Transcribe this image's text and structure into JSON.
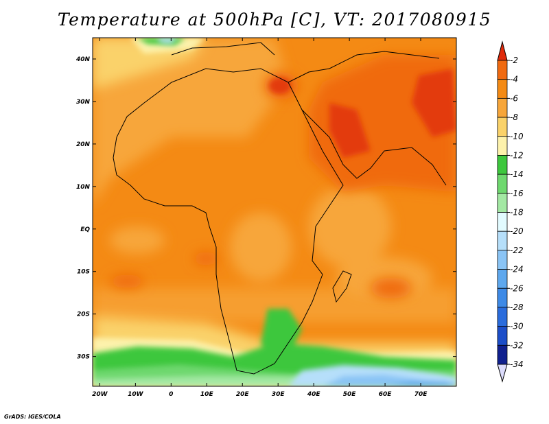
{
  "title": "Temperature at 500hPa [C], VT: 2017080915",
  "credit": "GrADS: IGES/COLA",
  "map": {
    "lon_range": [
      -22,
      80
    ],
    "lat_range": [
      -37,
      45
    ],
    "x_ticks": [
      {
        "value": -20,
        "label": "20W"
      },
      {
        "value": -10,
        "label": "10W"
      },
      {
        "value": 0,
        "label": "0"
      },
      {
        "value": 10,
        "label": "10E"
      },
      {
        "value": 20,
        "label": "20E"
      },
      {
        "value": 30,
        "label": "30E"
      },
      {
        "value": 40,
        "label": "40E"
      },
      {
        "value": 50,
        "label": "50E"
      },
      {
        "value": 60,
        "label": "60E"
      },
      {
        "value": 70,
        "label": "70E"
      }
    ],
    "y_ticks": [
      {
        "value": 40,
        "label": "40N"
      },
      {
        "value": 30,
        "label": "30N"
      },
      {
        "value": 20,
        "label": "20N"
      },
      {
        "value": 10,
        "label": "10N"
      },
      {
        "value": 0,
        "label": "EQ"
      },
      {
        "value": -10,
        "label": "10S"
      },
      {
        "value": -20,
        "label": "20S"
      },
      {
        "value": -30,
        "label": "30S"
      }
    ]
  },
  "colorbar": {
    "levels": [
      "-2",
      "-4",
      "-6",
      "-8",
      "-10",
      "-12",
      "-14",
      "-16",
      "-18",
      "-20",
      "-22",
      "-24",
      "-26",
      "-28",
      "-30",
      "-32",
      "-34"
    ],
    "colors": [
      "#e33b0c",
      "#f06a10",
      "#f48a14",
      "#f7a63a",
      "#fad26a",
      "#fdf2ac",
      "#3dc73d",
      "#6ed86e",
      "#a3e8a3",
      "#e2fbff",
      "#b6dffa",
      "#8ac4f5",
      "#5ea8ee",
      "#3e8ae6",
      "#2a6cdc",
      "#1c4ec8",
      "#10208e"
    ],
    "top_arrow_color": "#e02a0a",
    "bottom_arrow_color": "#dcdcfc"
  }
}
